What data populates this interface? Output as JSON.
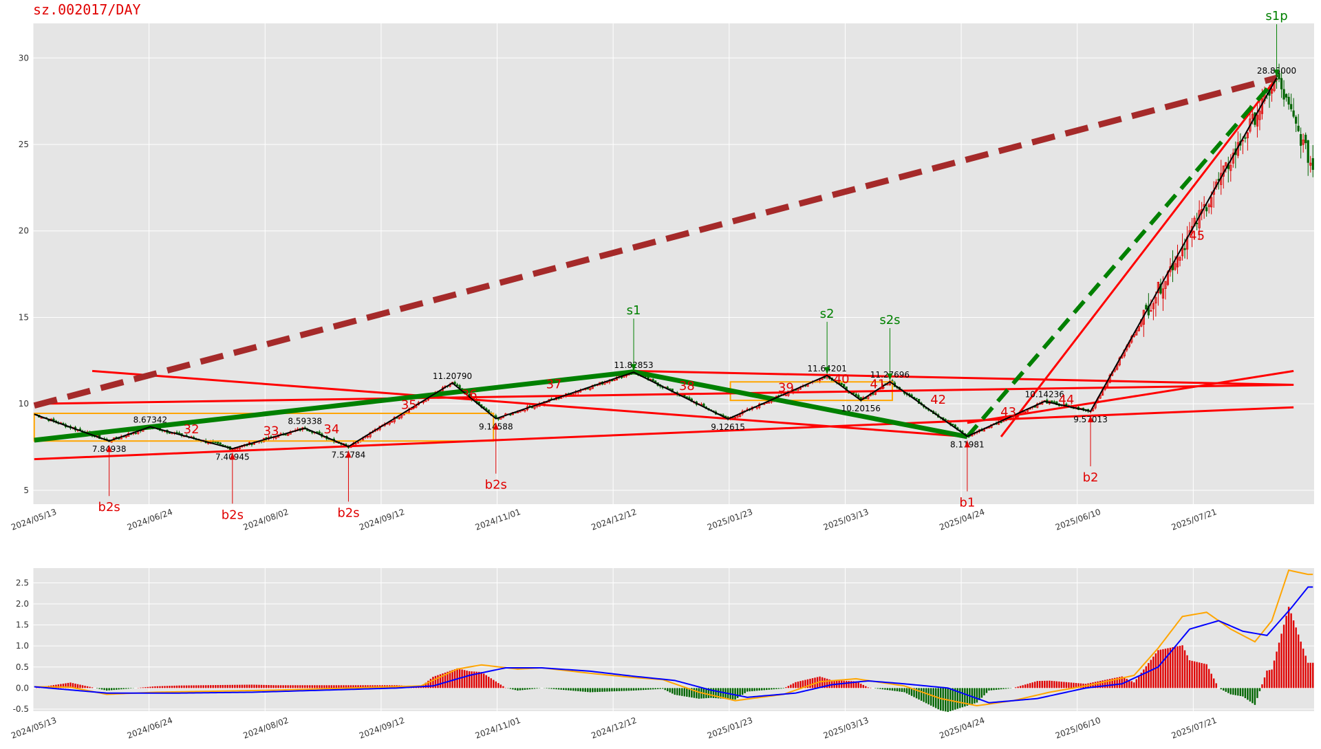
{
  "title": "sz.002017/DAY",
  "colors": {
    "up": "#e00000",
    "down": "#006400",
    "bg": "#e5e5e5",
    "grid": "#ffffff",
    "box": "#ffa500",
    "dif": "#ffa500",
    "dea": "#0000ff",
    "trend": "#ff0000",
    "mainTrend": "#008000",
    "dashed": "#a52a2a"
  },
  "chart_data": [
    {
      "type": "candlestick",
      "title": "sz.002017/DAY",
      "x_ticks": [
        "2024/05/13",
        "2024/06/24",
        "2024/08/02",
        "2024/09/12",
        "2024/11/01",
        "2024/12/12",
        "2025/01/23",
        "2025/03/13",
        "2025/04/24",
        "2025/06/10",
        "2025/07/21"
      ],
      "y_ticks": [
        "5",
        "10",
        "15",
        "20",
        "25",
        "30"
      ],
      "ylim": [
        4.2,
        32
      ],
      "grid": true,
      "zigzag": [
        {
          "x": 0,
          "y": 9.4
        },
        {
          "x": 31,
          "y": 7.84938
        },
        {
          "x": 48,
          "y": 8.67342
        },
        {
          "x": 82,
          "y": 7.40945
        },
        {
          "x": 112,
          "y": 8.59338
        },
        {
          "x": 130,
          "y": 7.52784
        },
        {
          "x": 173,
          "y": 11.2079
        },
        {
          "x": 191,
          "y": 9.14588
        },
        {
          "x": 248,
          "y": 11.82853
        },
        {
          "x": 287,
          "y": 9.12615
        },
        {
          "x": 328,
          "y": 11.64201
        },
        {
          "x": 342,
          "y": 10.20156
        },
        {
          "x": 354,
          "y": 11.27696
        },
        {
          "x": 386,
          "y": 8.11981
        },
        {
          "x": 418,
          "y": 10.14236
        },
        {
          "x": 437,
          "y": 9.57013
        },
        {
          "x": 514,
          "y": 28.85
        }
      ],
      "zigzag_labels": [
        {
          "x": 31,
          "y": 7.84938,
          "text": "7.84938",
          "pos": "below"
        },
        {
          "x": 48,
          "y": 8.67342,
          "text": "8.67342",
          "pos": "above"
        },
        {
          "x": 82,
          "y": 7.40945,
          "text": "7.40945",
          "pos": "below"
        },
        {
          "x": 112,
          "y": 8.59338,
          "text": "8.59338",
          "pos": "above"
        },
        {
          "x": 130,
          "y": 7.52784,
          "text": "7.52784",
          "pos": "below"
        },
        {
          "x": 173,
          "y": 11.2079,
          "text": "11.20790",
          "pos": "above"
        },
        {
          "x": 191,
          "y": 9.14588,
          "text": "9.14588",
          "pos": "below"
        },
        {
          "x": 248,
          "y": 11.82853,
          "text": "11.82853",
          "pos": "above"
        },
        {
          "x": 287,
          "y": 9.12615,
          "text": "9.12615",
          "pos": "below"
        },
        {
          "x": 328,
          "y": 11.64201,
          "text": "11.64201",
          "pos": "above"
        },
        {
          "x": 342,
          "y": 10.20156,
          "text": "10.20156",
          "pos": "below"
        },
        {
          "x": 354,
          "y": 11.27696,
          "text": "11.27696",
          "pos": "above"
        },
        {
          "x": 386,
          "y": 8.11981,
          "text": "8.11981",
          "pos": "below"
        },
        {
          "x": 418,
          "y": 10.14236,
          "text": "10.14236",
          "pos": "above"
        },
        {
          "x": 437,
          "y": 9.57013,
          "text": "9.57013",
          "pos": "below"
        },
        {
          "x": 514,
          "y": 28.85,
          "text": "28.85000",
          "pos": "above"
        }
      ],
      "buy_signals": [
        {
          "x": 31,
          "y": 7.84938,
          "label": "b2s"
        },
        {
          "x": 82,
          "y": 7.40945,
          "label": "b2s"
        },
        {
          "x": 130,
          "y": 7.52784,
          "label": "b2s"
        },
        {
          "x": 191,
          "y": 9.14588,
          "label": "b2s"
        },
        {
          "x": 386,
          "y": 8.11981,
          "label": "b1"
        },
        {
          "x": 437,
          "y": 9.57013,
          "label": "b2"
        }
      ],
      "sell_signals": [
        {
          "x": 248,
          "y": 11.82853,
          "label": "s1"
        },
        {
          "x": 328,
          "y": 11.64201,
          "label": "s2"
        },
        {
          "x": 354,
          "y": 11.27696,
          "label": "s2s"
        },
        {
          "x": 514,
          "y": 28.85,
          "label": "s1p"
        }
      ],
      "segment_numbers": [
        {
          "x": 65,
          "y": 8.3,
          "label": "32"
        },
        {
          "x": 98,
          "y": 8.2,
          "label": "33"
        },
        {
          "x": 123,
          "y": 8.3,
          "label": "34"
        },
        {
          "x": 155,
          "y": 9.7,
          "label": "35"
        },
        {
          "x": 180,
          "y": 10.3,
          "label": "36"
        },
        {
          "x": 215,
          "y": 10.9,
          "label": "37"
        },
        {
          "x": 270,
          "y": 10.8,
          "label": "38"
        },
        {
          "x": 311,
          "y": 10.7,
          "label": "39"
        },
        {
          "x": 334,
          "y": 11.2,
          "label": "40"
        },
        {
          "x": 349,
          "y": 10.9,
          "label": "41"
        },
        {
          "x": 374,
          "y": 10.0,
          "label": "42"
        },
        {
          "x": 403,
          "y": 9.3,
          "label": "43"
        },
        {
          "x": 427,
          "y": 10.0,
          "label": "44"
        },
        {
          "x": 481,
          "y": 19.5,
          "label": "45"
        }
      ],
      "central_boxes": [
        {
          "x1": 0,
          "x2": 190,
          "y1": 7.85,
          "y2": 9.45
        },
        {
          "x1": 288,
          "x2": 355,
          "y1": 10.2,
          "y2": 11.27
        }
      ],
      "trend_lines": [
        {
          "x1": 0,
          "y1": 6.8,
          "x2": 521,
          "y2": 9.8,
          "style": "red"
        },
        {
          "x1": 0,
          "y1": 10.0,
          "x2": 521,
          "y2": 11.1,
          "style": "red"
        },
        {
          "x1": 24,
          "y1": 11.9,
          "x2": 386,
          "y2": 8.1,
          "style": "red"
        },
        {
          "x1": 248,
          "y1": 11.9,
          "x2": 521,
          "y2": 11.1,
          "style": "red"
        },
        {
          "x1": 386,
          "y1": 8.9,
          "x2": 521,
          "y2": 11.9,
          "style": "red"
        },
        {
          "x1": 400,
          "y1": 8.1,
          "x2": 514,
          "y2": 28.85,
          "style": "red"
        },
        {
          "x1": 0,
          "y1": 7.9,
          "x2": 248,
          "y2": 11.85,
          "style": "green"
        },
        {
          "x1": 248,
          "y1": 11.85,
          "x2": 386,
          "y2": 8.1,
          "style": "green"
        },
        {
          "x1": 386,
          "y1": 8.1,
          "x2": 514,
          "y2": 28.85,
          "style": "green-dashed"
        },
        {
          "x1": 0,
          "y1": 9.9,
          "x2": 514,
          "y2": 28.85,
          "style": "brown-dashed"
        }
      ]
    },
    {
      "type": "macd",
      "x_ticks": [
        "2024/05/13",
        "2024/06/24",
        "2024/08/02",
        "2024/09/12",
        "2024/11/01",
        "2024/12/12",
        "2025/01/23",
        "2025/03/13",
        "2025/04/24",
        "2025/06/10",
        "2025/07/21"
      ],
      "y_ticks": [
        "-0.5",
        "0.0",
        "0.5",
        "1.0",
        "1.5",
        "2.0",
        "2.5"
      ],
      "ylim": [
        -0.55,
        2.85
      ],
      "dif_keys": [
        [
          0,
          0.03
        ],
        [
          15,
          0.02
        ],
        [
          30,
          -0.15
        ],
        [
          50,
          -0.1
        ],
        [
          70,
          -0.08
        ],
        [
          100,
          -0.05
        ],
        [
          130,
          0.0
        ],
        [
          160,
          0.05
        ],
        [
          175,
          0.45
        ],
        [
          185,
          0.55
        ],
        [
          200,
          0.45
        ],
        [
          210,
          0.48
        ],
        [
          230,
          0.35
        ],
        [
          248,
          0.25
        ],
        [
          260,
          0.2
        ],
        [
          275,
          -0.1
        ],
        [
          290,
          -0.3
        ],
        [
          310,
          -0.15
        ],
        [
          325,
          0.15
        ],
        [
          340,
          0.22
        ],
        [
          360,
          0.05
        ],
        [
          375,
          -0.25
        ],
        [
          390,
          -0.42
        ],
        [
          405,
          -0.3
        ],
        [
          420,
          -0.1
        ],
        [
          435,
          0.05
        ],
        [
          455,
          0.3
        ],
        [
          465,
          0.95
        ],
        [
          475,
          1.7
        ],
        [
          485,
          1.8
        ],
        [
          495,
          1.4
        ],
        [
          505,
          1.1
        ],
        [
          512,
          1.6
        ],
        [
          519,
          2.8
        ],
        [
          527,
          2.7
        ]
      ],
      "dea_keys": [
        [
          0,
          0.03
        ],
        [
          30,
          -0.12
        ],
        [
          60,
          -0.12
        ],
        [
          90,
          -0.1
        ],
        [
          120,
          -0.05
        ],
        [
          150,
          0.0
        ],
        [
          165,
          0.05
        ],
        [
          180,
          0.3
        ],
        [
          195,
          0.48
        ],
        [
          210,
          0.48
        ],
        [
          230,
          0.4
        ],
        [
          248,
          0.28
        ],
        [
          265,
          0.18
        ],
        [
          280,
          -0.05
        ],
        [
          295,
          -0.22
        ],
        [
          315,
          -0.12
        ],
        [
          330,
          0.08
        ],
        [
          345,
          0.17
        ],
        [
          360,
          0.1
        ],
        [
          378,
          0.0
        ],
        [
          395,
          -0.35
        ],
        [
          415,
          -0.25
        ],
        [
          435,
          0.0
        ],
        [
          450,
          0.1
        ],
        [
          465,
          0.5
        ],
        [
          478,
          1.4
        ],
        [
          490,
          1.6
        ],
        [
          500,
          1.35
        ],
        [
          510,
          1.25
        ],
        [
          520,
          1.9
        ],
        [
          527,
          2.4
        ]
      ]
    }
  ]
}
